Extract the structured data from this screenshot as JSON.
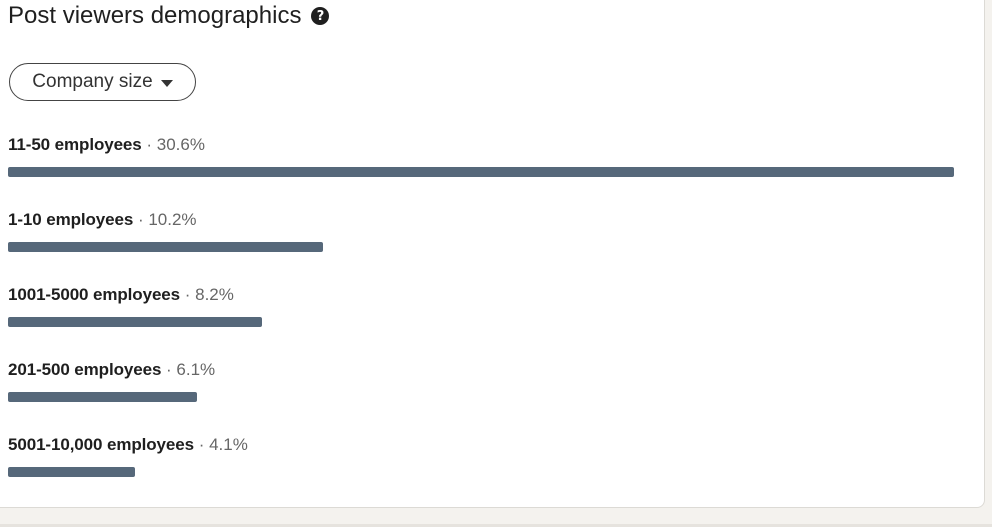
{
  "header": {
    "title": "Post viewers demographics",
    "help_icon": "question-circle-icon",
    "help_glyph": "?"
  },
  "filter": {
    "label": "Company size",
    "icon": "caret-down-icon"
  },
  "separator": "·",
  "demographics": [
    {
      "label": "11-50 employees",
      "percent_text": "30.6%",
      "share": 0.306
    },
    {
      "label": "1-10 employees",
      "percent_text": "10.2%",
      "share": 0.102
    },
    {
      "label": "1001-5000 employees",
      "percent_text": "8.2%",
      "share": 0.082
    },
    {
      "label": "201-500 employees",
      "percent_text": "6.1%",
      "share": 0.061
    },
    {
      "label": "5001-10,000 employees",
      "percent_text": "4.1%",
      "share": 0.041
    }
  ],
  "colors": {
    "bar": "#56687a",
    "card_background": "#ffffff",
    "page_background": "#f4f2ee"
  }
}
